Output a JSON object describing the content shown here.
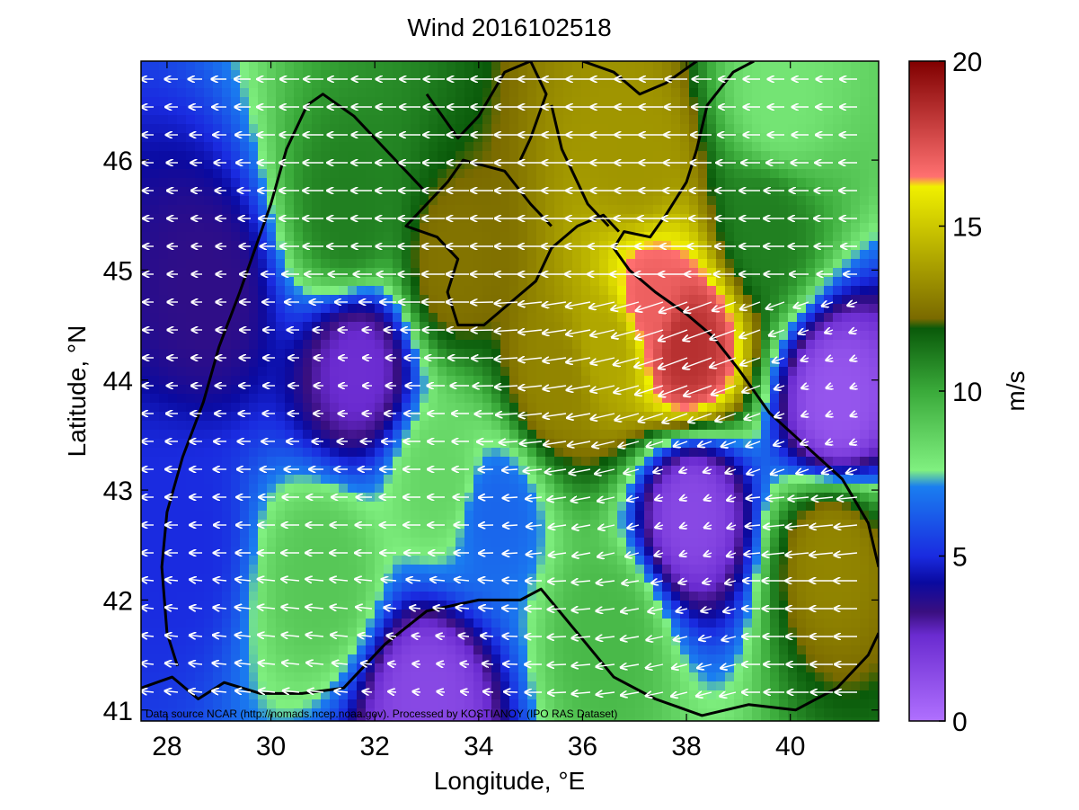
{
  "chart_data": {
    "type": "heatmap",
    "title": "Wind 2016102518",
    "xlabel": "Longitude, °E",
    "ylabel": "Latitude, °N",
    "xlim": [
      27.5,
      41.7
    ],
    "ylim": [
      40.9,
      46.9
    ],
    "xticks": [
      "28",
      "30",
      "32",
      "34",
      "36",
      "38",
      "40"
    ],
    "yticks": [
      "41",
      "42",
      "43",
      "44",
      "45",
      "46"
    ],
    "colorbar": {
      "label": "m/s",
      "range": [
        0,
        20
      ],
      "ticks": [
        "0",
        "5",
        "10",
        "15",
        "20"
      ],
      "stops": [
        {
          "value": 0,
          "color": "#b070ff"
        },
        {
          "value": 2.6,
          "color": "#6a2bd0"
        },
        {
          "value": 3.3,
          "color": "#3a0f80"
        },
        {
          "value": 4.2,
          "color": "#0a0aa0"
        },
        {
          "value": 5.0,
          "color": "#1a2be0"
        },
        {
          "value": 7.1,
          "color": "#1a7ef0"
        },
        {
          "value": 7.6,
          "color": "#80f080"
        },
        {
          "value": 10.0,
          "color": "#3aaa3a"
        },
        {
          "value": 11.9,
          "color": "#0a5a0a"
        },
        {
          "value": 12.2,
          "color": "#7a6a00"
        },
        {
          "value": 16.2,
          "color": "#f0f000"
        },
        {
          "value": 16.5,
          "color": "#ff7070"
        },
        {
          "value": 20,
          "color": "#800000"
        }
      ]
    },
    "grid": false,
    "wind_field": {
      "description_note": "",
      "zones": [
        {
          "lon": 38.0,
          "lat": 44.3,
          "speed": 18.5
        },
        {
          "lon": 37.3,
          "lat": 44.7,
          "speed": 17.0
        },
        {
          "lon": 36.5,
          "lat": 44.3,
          "speed": 14.0
        },
        {
          "lon": 37.0,
          "lat": 46.0,
          "speed": 13.5
        },
        {
          "lon": 35.5,
          "lat": 44.0,
          "speed": 13.0
        },
        {
          "lon": 33.5,
          "lat": 45.0,
          "speed": 12.5
        },
        {
          "lon": 31.5,
          "lat": 45.5,
          "speed": 11.0
        },
        {
          "lon": 39.5,
          "lat": 45.4,
          "speed": 11.0
        },
        {
          "lon": 40.8,
          "lat": 42.4,
          "speed": 13.0
        },
        {
          "lon": 31.0,
          "lat": 42.2,
          "speed": 9.0
        },
        {
          "lon": 36.5,
          "lat": 41.7,
          "speed": 9.5
        },
        {
          "lon": 33.3,
          "lat": 43.1,
          "speed": 8.5
        },
        {
          "lon": 31.7,
          "lat": 44.1,
          "speed": 2.5
        },
        {
          "lon": 38.1,
          "lat": 42.8,
          "speed": 1.5
        },
        {
          "lon": 40.9,
          "lat": 43.8,
          "speed": 1.0
        },
        {
          "lon": 28.8,
          "lat": 44.8,
          "speed": 3.5
        },
        {
          "lon": 33.0,
          "lat": 41.1,
          "speed": 1.5
        },
        {
          "lon": 28.2,
          "lat": 42.5,
          "speed": 5.0
        },
        {
          "lon": 34.3,
          "lat": 42.8,
          "speed": 6.5
        },
        {
          "lon": 39.8,
          "lat": 46.5,
          "speed": 8.0
        }
      ]
    },
    "credit": "Data source NCAR (http://nomads.ncep.noaa.gov). Processed by KOSTIANOY (IPO RAS Dataset)"
  }
}
